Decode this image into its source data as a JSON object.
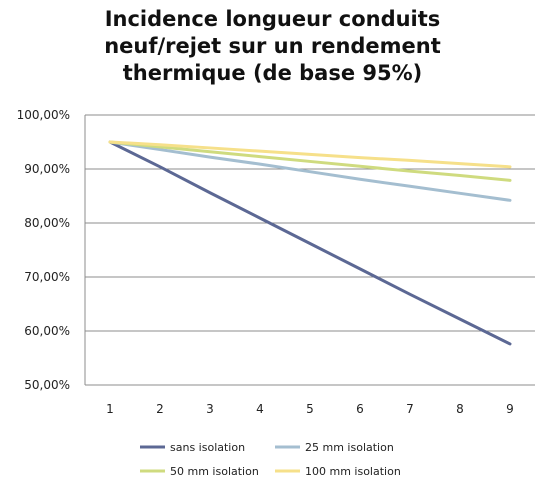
{
  "chart_data": {
    "type": "line",
    "title_lines": [
      "Incidence longueur conduits",
      "neuf/rejet sur un rendement",
      "thermique (de base 95%)"
    ],
    "x": [
      1,
      2,
      3,
      4,
      5,
      6,
      7,
      8,
      9
    ],
    "x_tick_labels": [
      "1",
      "2",
      "3",
      "4",
      "5",
      "6",
      "7",
      "8",
      "9"
    ],
    "ylim": [
      50,
      100
    ],
    "y_ticks": [
      50,
      60,
      70,
      80,
      90,
      100
    ],
    "y_tick_labels": [
      "50,00%",
      "60,00%",
      "70,00%",
      "80,00%",
      "90,00%",
      "100,00%"
    ],
    "grid": "horizontal",
    "legend_position": "bottom",
    "series": [
      {
        "name": "sans isolation",
        "color": "#5c6894",
        "values": [
          95.0,
          90.4,
          85.6,
          80.9,
          76.2,
          71.5,
          66.8,
          62.2,
          57.6
        ]
      },
      {
        "name": "25 mm isolation",
        "color": "#a4bed0",
        "values": [
          95.0,
          93.6,
          92.2,
          90.9,
          89.5,
          88.1,
          86.8,
          85.5,
          84.2
        ]
      },
      {
        "name": "50 mm isolation",
        "color": "#cfdb7f",
        "values": [
          95.0,
          94.1,
          93.2,
          92.3,
          91.4,
          90.5,
          89.6,
          88.8,
          87.9
        ]
      },
      {
        "name": "100 mm isolation",
        "color": "#f6e08a",
        "values": [
          95.0,
          94.5,
          93.9,
          93.3,
          92.7,
          92.1,
          91.6,
          91.0,
          90.4
        ]
      }
    ]
  }
}
